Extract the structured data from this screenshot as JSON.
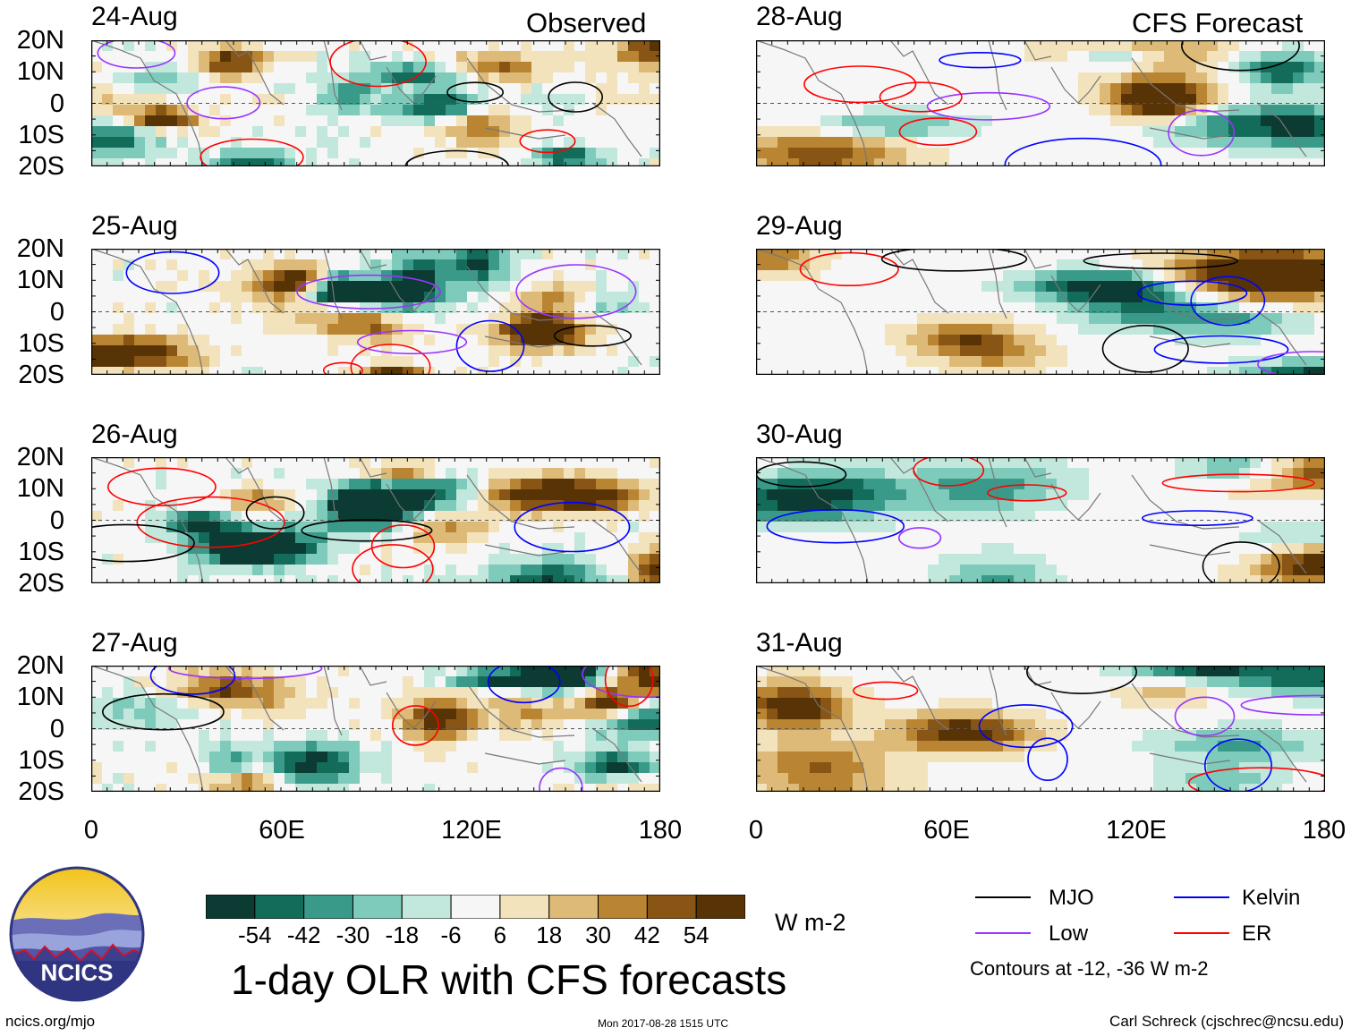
{
  "header": {
    "observed_label": "Observed",
    "forecast_label": "CFS Forecast"
  },
  "observed_panels": [
    {
      "date": "24-Aug"
    },
    {
      "date": "25-Aug"
    },
    {
      "date": "26-Aug"
    },
    {
      "date": "27-Aug"
    }
  ],
  "forecast_panels": [
    {
      "date": "28-Aug"
    },
    {
      "date": "29-Aug"
    },
    {
      "date": "30-Aug"
    },
    {
      "date": "31-Aug"
    }
  ],
  "axes": {
    "lat_labels": [
      "20N",
      "10N",
      "0",
      "10S",
      "20S"
    ],
    "lon_labels": [
      "0",
      "60E",
      "120E",
      "180"
    ]
  },
  "colorbar": {
    "colors": [
      "#0b3b32",
      "#136b5a",
      "#3a9a8a",
      "#7fcbbb",
      "#c2e8dd",
      "#f6f6f6",
      "#f3e3bc",
      "#ddba78",
      "#b98532",
      "#895514",
      "#583306"
    ],
    "ticks": [
      "-54",
      "-42",
      "-30",
      "-18",
      "-6",
      "6",
      "18",
      "30",
      "42",
      "54"
    ],
    "units": "W m-2"
  },
  "title": "1-day OLR with CFS forecasts",
  "legend": {
    "items": [
      {
        "label": "MJO",
        "color": "#000000"
      },
      {
        "label": "Kelvin",
        "color": "#0000ff"
      },
      {
        "label": "Low",
        "color": "#9933ff"
      },
      {
        "label": "ER",
        "color": "#ff0000"
      }
    ],
    "note": "Contours at -12, -36 W m-2"
  },
  "logo": {
    "text": "NCICS"
  },
  "footer": {
    "left": "ncics.org/mjo",
    "center": "Mon 2017-08-28 1515 UTC",
    "right": "Carl Schreck (cjschrec@ncsu.edu)"
  }
}
